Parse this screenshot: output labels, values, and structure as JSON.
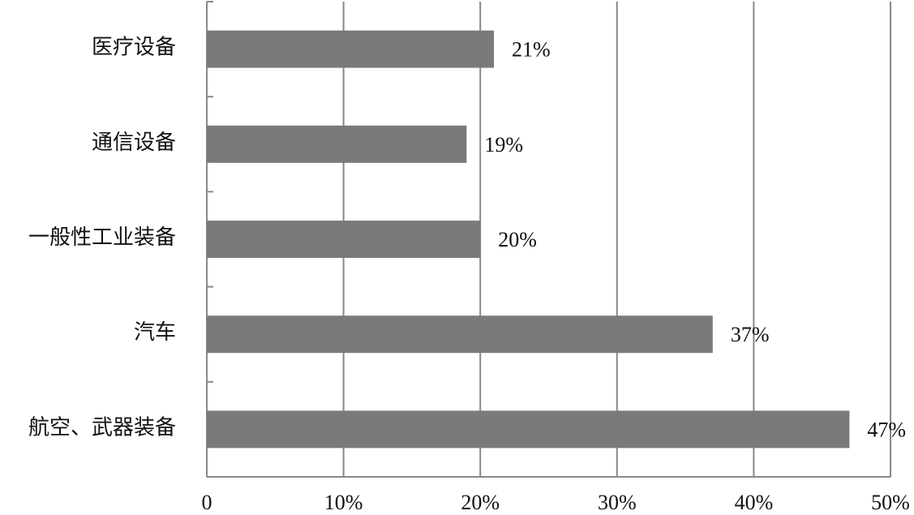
{
  "chart_data": {
    "type": "bar",
    "orientation": "horizontal",
    "categories": [
      "医疗设备",
      "通信设备",
      "一般性工业装备",
      "汽车",
      "航空、武器装备"
    ],
    "values": [
      21,
      19,
      20,
      37,
      47
    ],
    "value_labels": [
      "21%",
      "19%",
      "20%",
      "37%",
      "47%"
    ],
    "color": "#7a7a7a",
    "xlim": [
      0,
      50
    ],
    "xticks": [
      0,
      {
        "value": 10,
        "label": "10%"
      },
      {
        "value": 20,
        "label": "20%"
      },
      {
        "value": 30,
        "label": "30%"
      },
      {
        "value": 40,
        "label": "40%"
      },
      {
        "value": 50,
        "label": "50%"
      }
    ],
    "grid": true
  }
}
